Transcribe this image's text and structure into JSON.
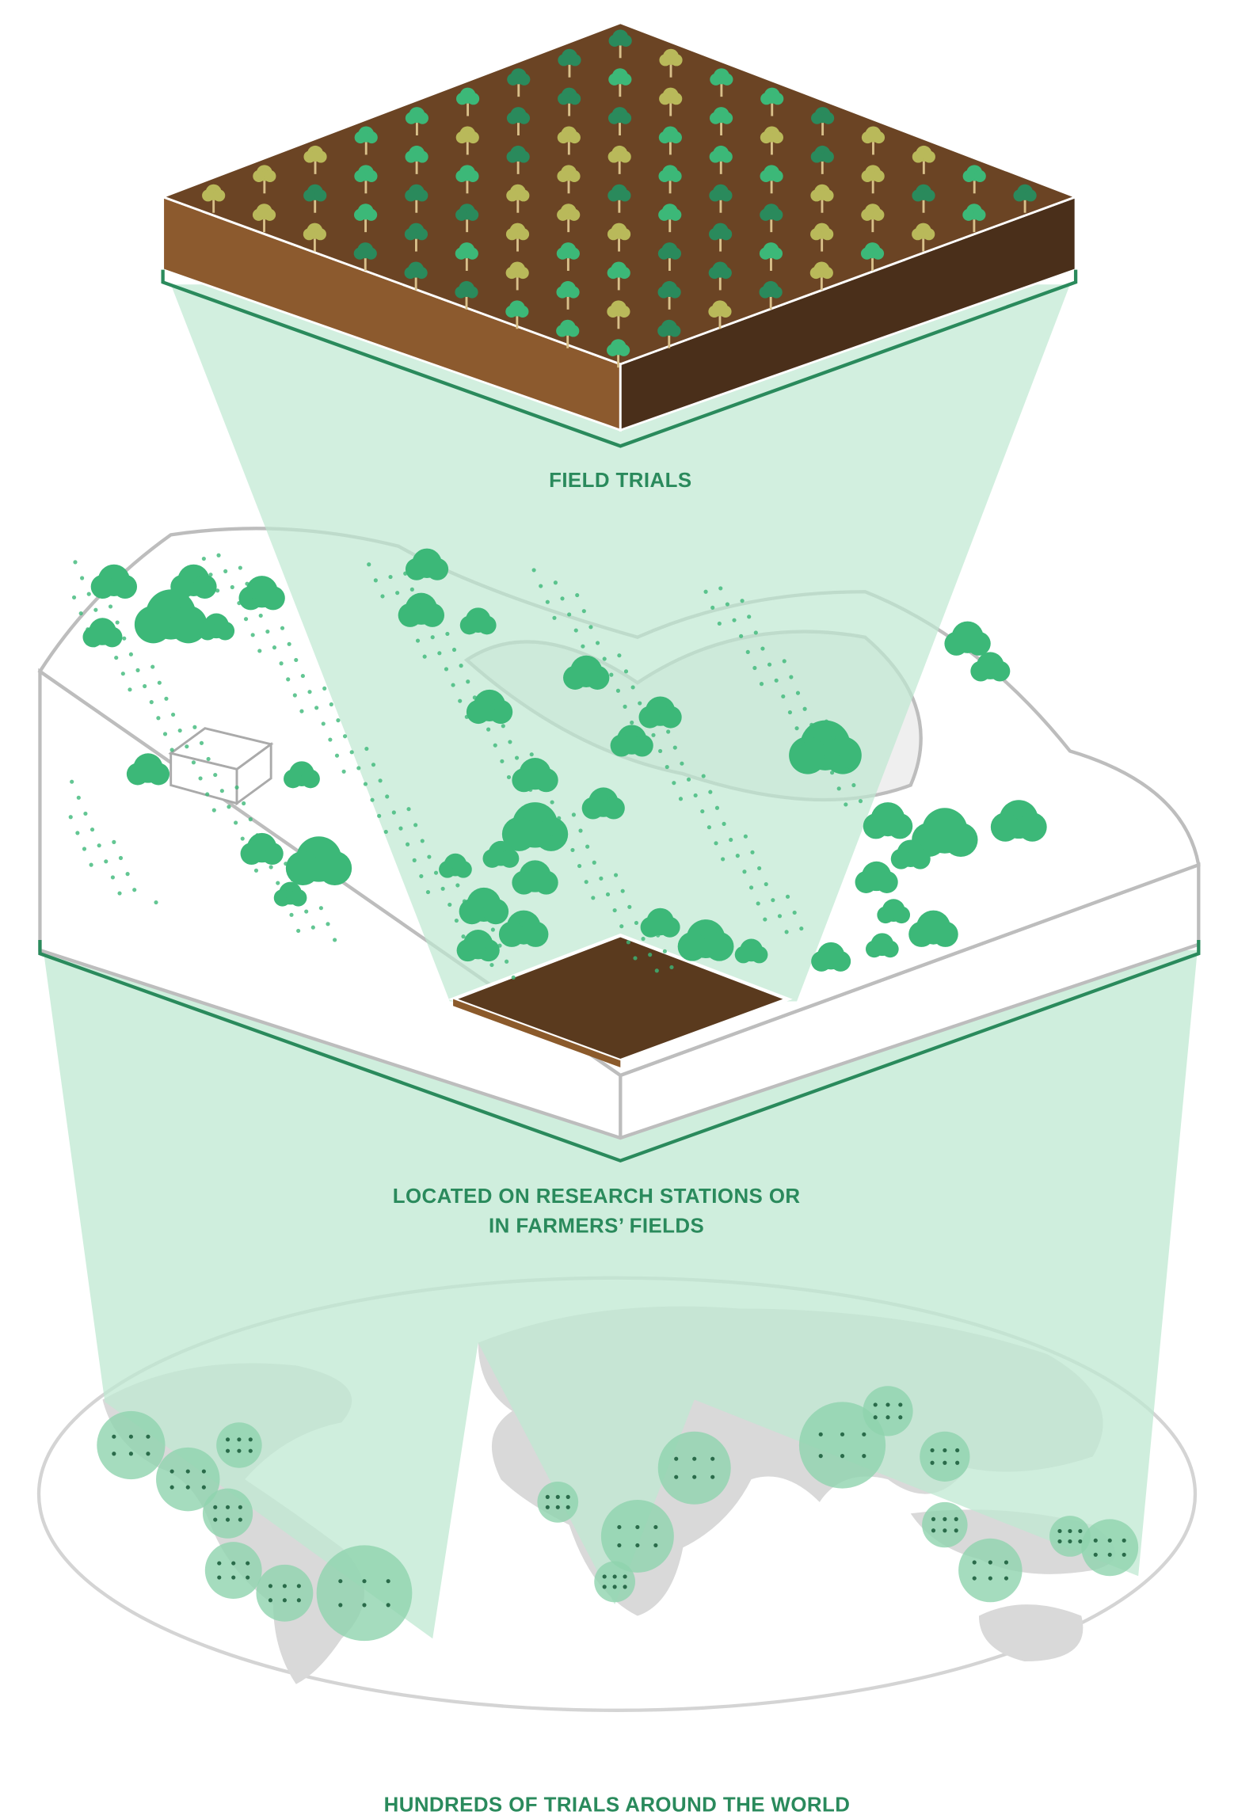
{
  "labels": {
    "field_trials": "FIELD TRIALS",
    "research_stations": [
      "LOCATED ON RESEARCH STATIONS OR",
      "IN FARMERS’ FIELDS"
    ],
    "world": "HUNDREDS OF TRIALS AROUND THE WORLD"
  }
}
